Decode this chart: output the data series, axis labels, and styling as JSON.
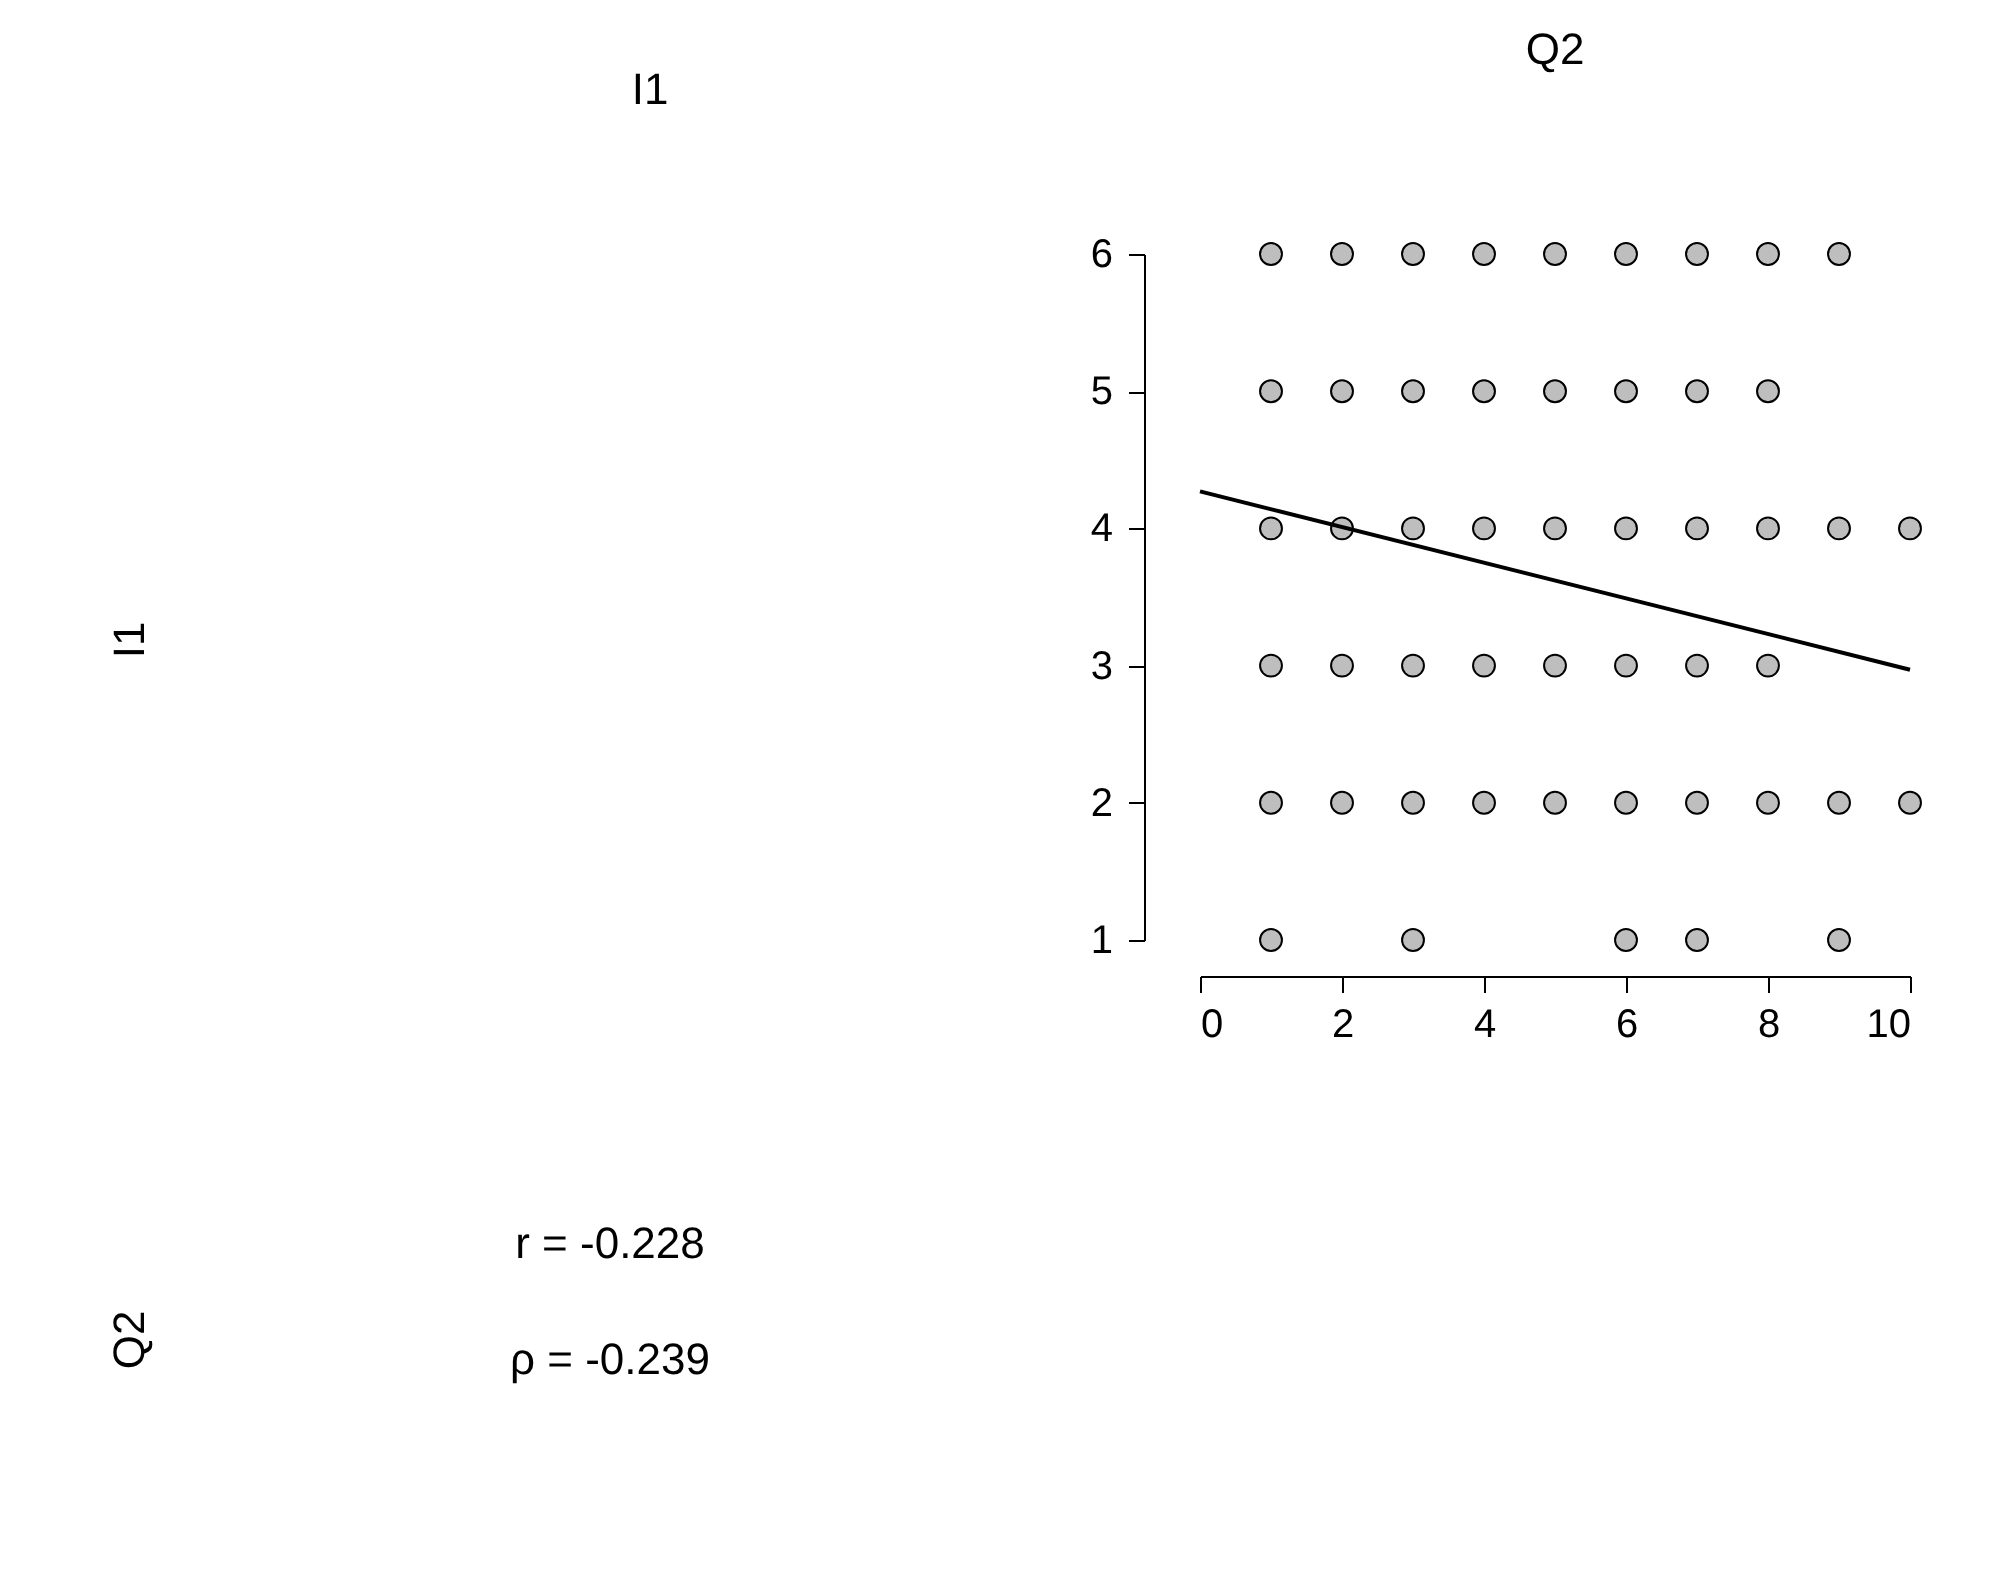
{
  "chart_data": [
    {
      "type": "other",
      "title": "I1",
      "ylabel": "I1"
    },
    {
      "type": "scatter",
      "title": "Q2",
      "xlim": [
        0,
        10
      ],
      "xticks": [
        0,
        2,
        4,
        6,
        8,
        10
      ],
      "ylim": [
        1,
        6
      ],
      "yticks": [
        1,
        2,
        3,
        4,
        5,
        6
      ],
      "grid": false,
      "line_style": "solid",
      "series": [
        {
          "type": "scatter",
          "color": "#bebebe",
          "marker": "circle",
          "x": [
            1,
            2,
            3,
            4,
            5,
            6,
            7,
            8,
            9,
            1,
            2,
            3,
            4,
            5,
            6,
            7,
            8,
            1,
            2,
            3,
            4,
            5,
            6,
            7,
            8,
            9,
            10,
            1,
            2,
            3,
            4,
            5,
            6,
            7,
            8,
            1,
            2,
            3,
            4,
            5,
            6,
            7,
            8,
            9,
            10,
            1,
            3,
            6,
            7,
            9
          ],
          "values": [
            6,
            6,
            6,
            6,
            6,
            6,
            6,
            6,
            6,
            5,
            5,
            5,
            5,
            5,
            5,
            5,
            5,
            4,
            4,
            4,
            4,
            4,
            4,
            4,
            4,
            4,
            4,
            3,
            3,
            3,
            3,
            3,
            3,
            3,
            3,
            2,
            2,
            2,
            2,
            2,
            2,
            2,
            2,
            2,
            2,
            1,
            1,
            1,
            1,
            1
          ]
        },
        {
          "type": "line",
          "color": "#000000",
          "marker": "none",
          "x": [
            0,
            10
          ],
          "values": [
            4.27,
            2.97
          ]
        }
      ]
    },
    {
      "type": "other",
      "ylabel": "Q2",
      "annotations": [
        "r = -0.228",
        "ρ = -0.239"
      ]
    }
  ]
}
